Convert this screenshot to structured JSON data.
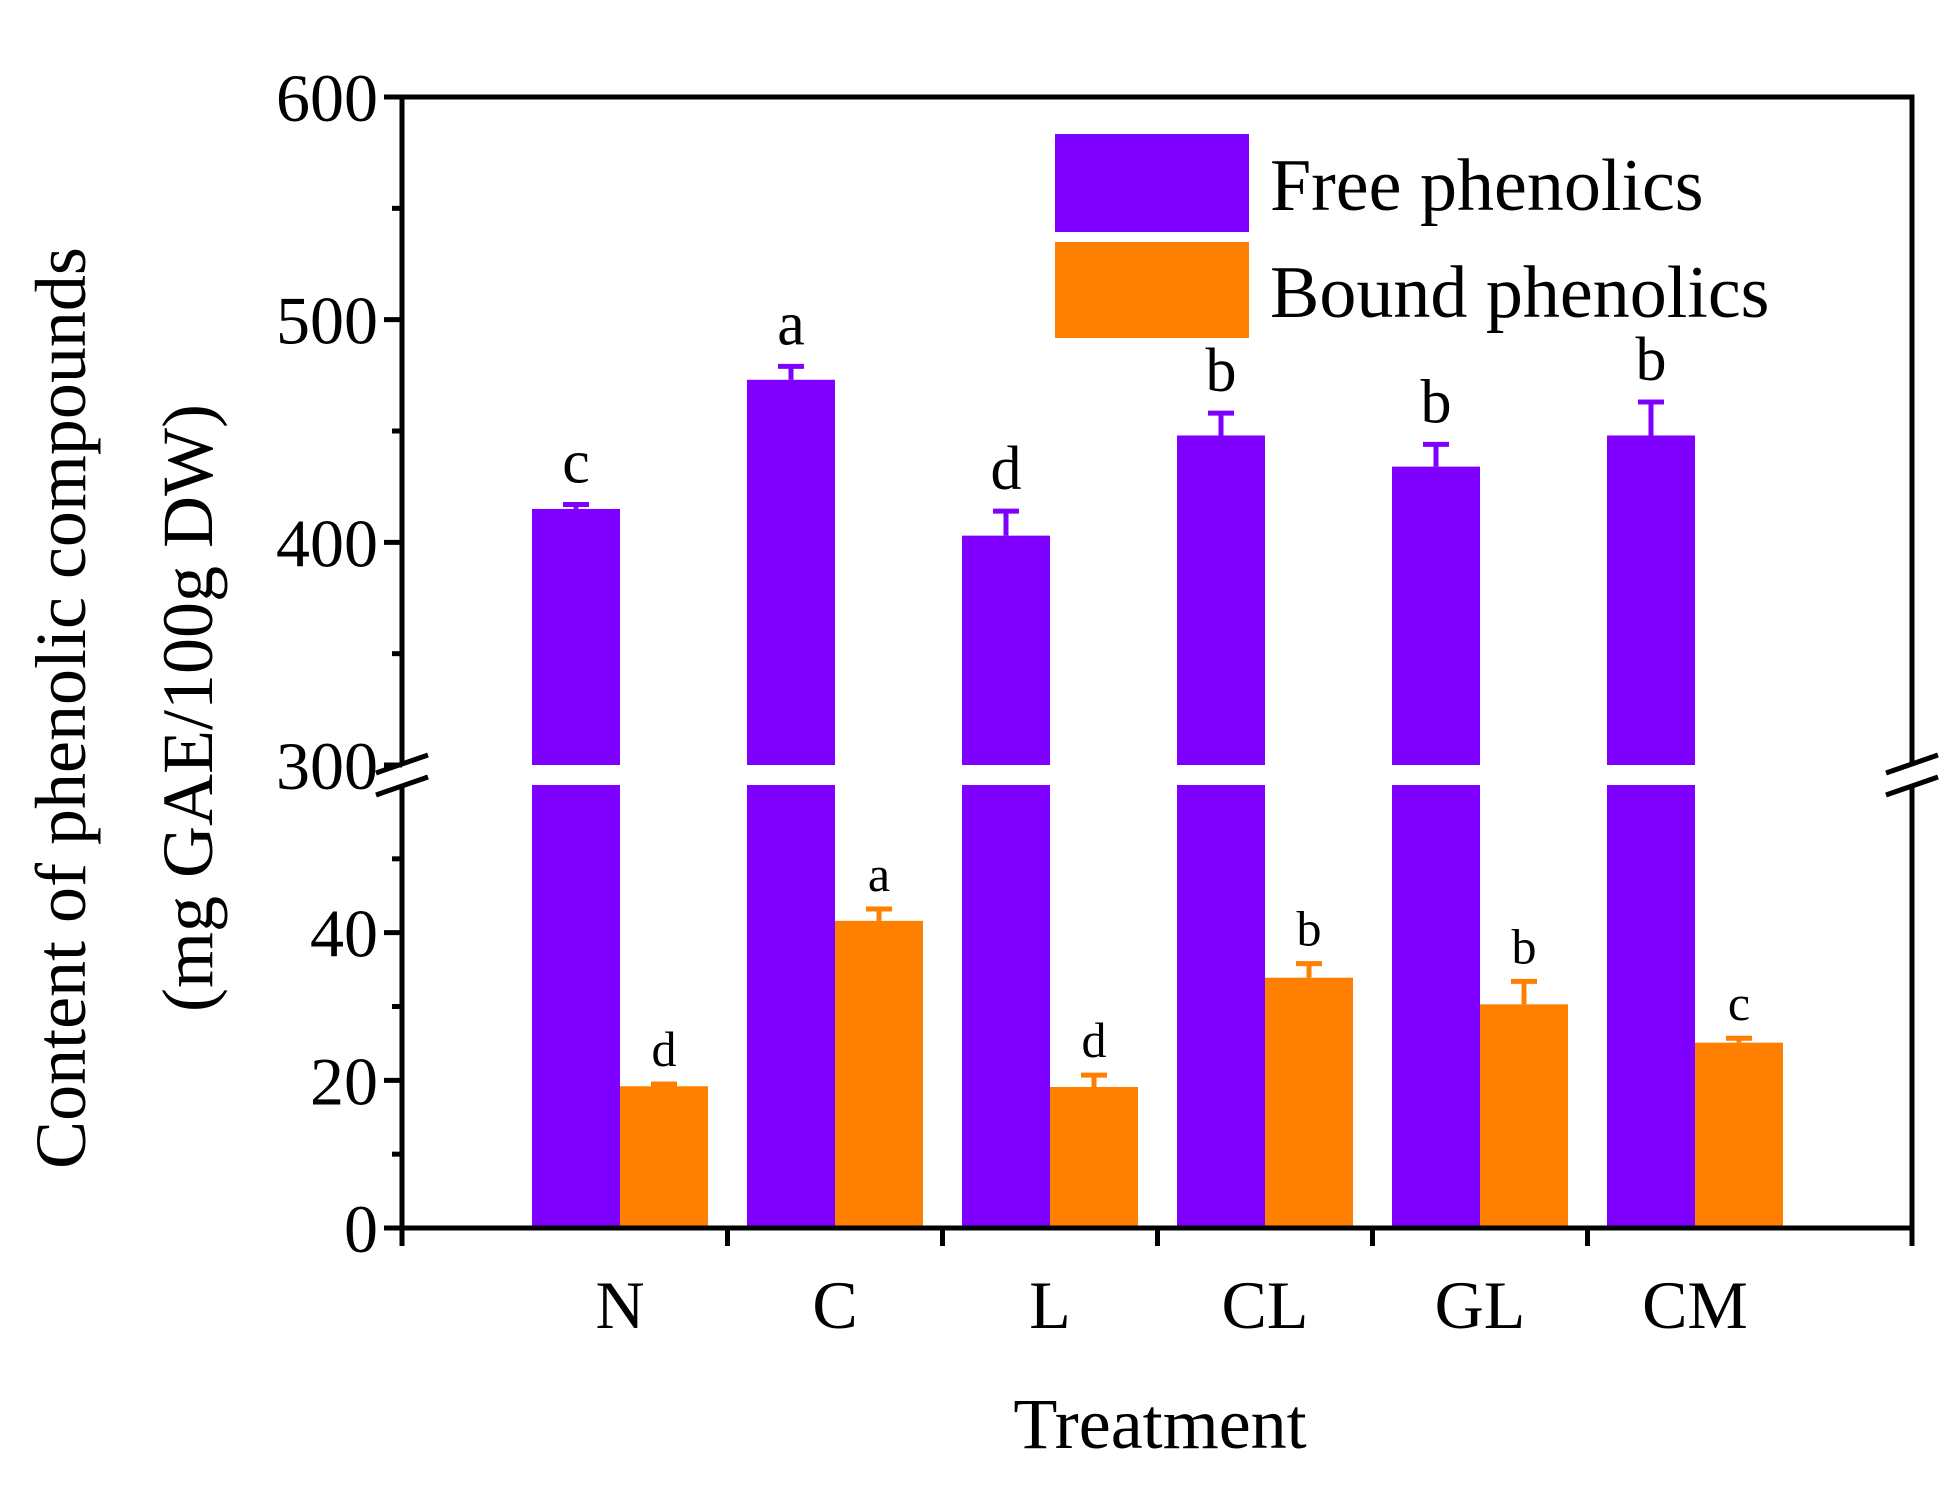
{
  "chart_data": {
    "type": "bar",
    "title": "",
    "xlabel": "Treatment",
    "ylabel": [
      "Content of phenolic compounds",
      "(mg GAE/100g DW)"
    ],
    "categories": [
      "N",
      "C",
      "L",
      "CL",
      "GL",
      "CM"
    ],
    "axis_break": {
      "lower_range": [
        0,
        60
      ],
      "upper_range": [
        300,
        600
      ]
    },
    "lower_ticks": [
      0,
      20,
      40
    ],
    "upper_ticks": [
      300,
      400,
      500,
      600
    ],
    "series": [
      {
        "name": "Free phenolics",
        "color": "#8000ff",
        "values": [
          415,
          473,
          403,
          448,
          434,
          448
        ],
        "errors": [
          2,
          6,
          11,
          10,
          10,
          15
        ],
        "significance": [
          "c",
          "a",
          "d",
          "b",
          "b",
          "b"
        ]
      },
      {
        "name": "Bound phenolics",
        "color": "#ff8000",
        "values": [
          19.2,
          41.6,
          19.1,
          33.9,
          30.3,
          25.1
        ],
        "errors": [
          0.3,
          1.6,
          1.6,
          1.9,
          3.1,
          0.6
        ],
        "significance": [
          "d",
          "a",
          "d",
          "b",
          "b",
          "c"
        ]
      }
    ],
    "legend_position": "top-right"
  }
}
